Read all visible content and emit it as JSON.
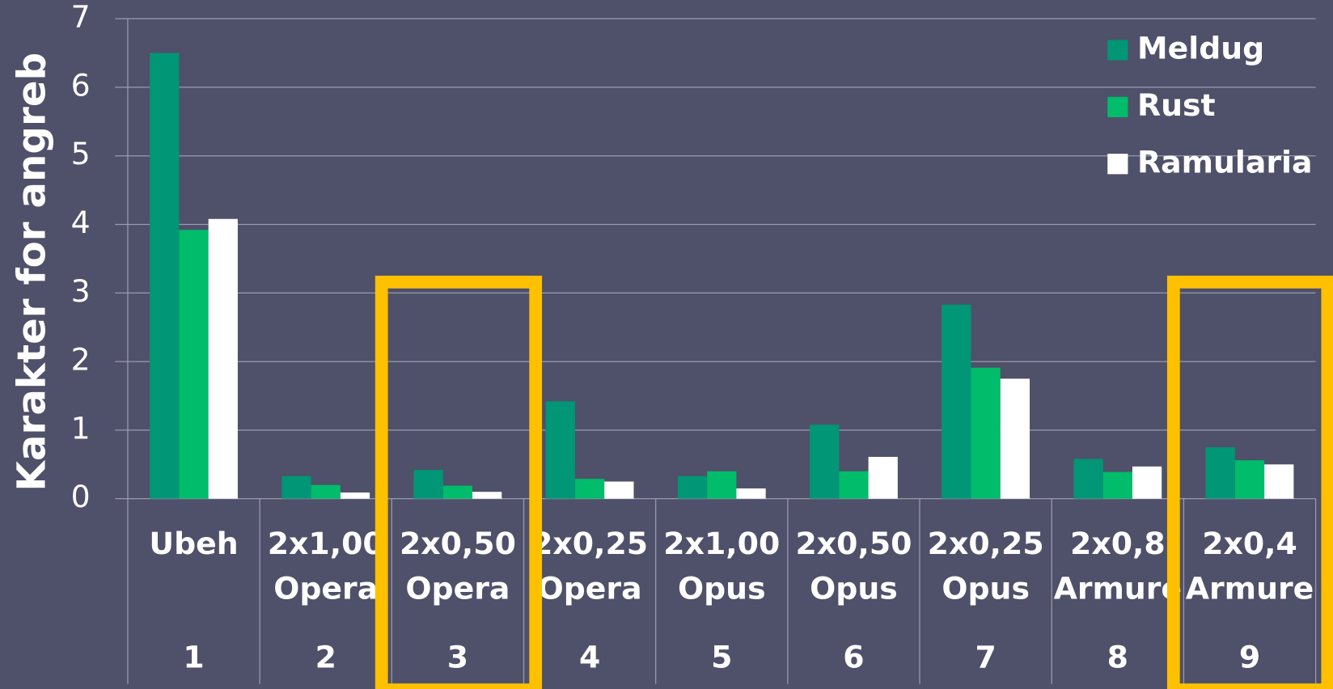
{
  "chart_data": {
    "type": "bar",
    "ylabel": "Karakter for angreb",
    "categories": [
      [
        "Ubeh"
      ],
      [
        "2x1,00",
        "Opera"
      ],
      [
        "2x0,50",
        "Opera"
      ],
      [
        "2x0,25",
        "Opera"
      ],
      [
        "2x1,00",
        "Opus"
      ],
      [
        "2x0,50",
        "Opus"
      ],
      [
        "2x0,25",
        "Opus"
      ],
      [
        "2x0,8",
        "Armure"
      ],
      [
        "2x0,4",
        "Armure"
      ]
    ],
    "category_numbers": [
      1,
      2,
      3,
      4,
      5,
      6,
      7,
      8,
      9
    ],
    "series": [
      {
        "name": "Meldug",
        "color": "#009676",
        "values": [
          6.5,
          0.33,
          0.42,
          1.42,
          0.33,
          1.08,
          2.83,
          0.58,
          0.75
        ]
      },
      {
        "name": "Rust",
        "color": "#00bc6b",
        "values": [
          3.92,
          0.2,
          0.19,
          0.29,
          0.4,
          0.4,
          1.91,
          0.39,
          0.56
        ]
      },
      {
        "name": "Ramularia",
        "color": "#ffffff",
        "values": [
          4.08,
          0.09,
          0.1,
          0.25,
          0.15,
          0.61,
          1.75,
          0.47,
          0.5
        ]
      }
    ],
    "ylim": [
      0,
      7
    ],
    "yticks": [
      0,
      1,
      2,
      3,
      4,
      5,
      6,
      7
    ],
    "grid": true,
    "legend": "top-right",
    "highlighted_categories": [
      3,
      9
    ],
    "highlight_color": "#ffc000"
  }
}
